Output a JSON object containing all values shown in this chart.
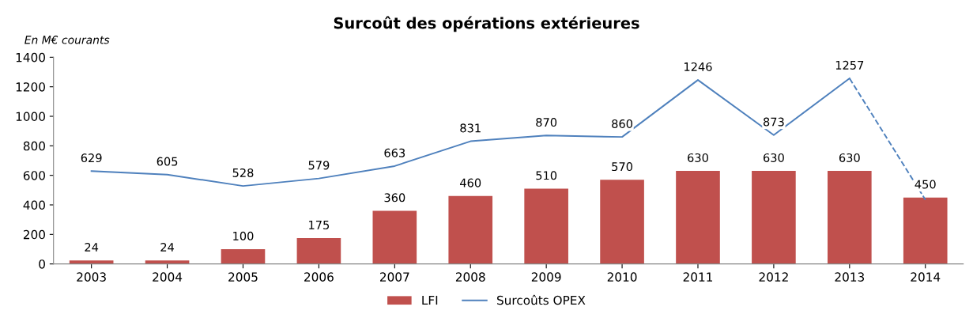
{
  "chart_data": {
    "type": "bar",
    "title": "Surcoût des opérations extérieures",
    "ylabel": "En M€ courants",
    "categories": [
      "2003",
      "2004",
      "2005",
      "2006",
      "2007",
      "2008",
      "2009",
      "2010",
      "2011",
      "2012",
      "2013",
      "2014"
    ],
    "series": [
      {
        "name": "LFI",
        "color": "#c0504d",
        "values": [
          24,
          24,
          100,
          175,
          360,
          460,
          510,
          570,
          630,
          630,
          630,
          450
        ],
        "value_labels": [
          "24",
          "24",
          "100",
          "175",
          "360",
          "460",
          "510",
          "570",
          "630",
          "630",
          "630",
          "450"
        ]
      },
      {
        "name": "Surcoûts OPEX",
        "type": "line",
        "color": "#4f81bd",
        "line_style": "solid",
        "values": [
          629,
          605,
          528,
          579,
          663,
          831,
          870,
          860,
          1246,
          873,
          1257,
          null
        ],
        "value_labels": [
          "629",
          "605",
          "528",
          "579",
          "663",
          "831",
          "870",
          "860",
          "1246",
          "873",
          "1257",
          null
        ]
      },
      {
        "type": "line",
        "color": "#4f81bd",
        "line_style": "dashed",
        "values": [
          null,
          null,
          null,
          null,
          null,
          null,
          null,
          null,
          null,
          null,
          1257,
          435
        ]
      }
    ],
    "ylim": [
      0,
      1400
    ],
    "yticks": [
      0,
      200,
      400,
      600,
      800,
      1000,
      1200,
      1400
    ],
    "grid": false,
    "legend": "bottom"
  }
}
